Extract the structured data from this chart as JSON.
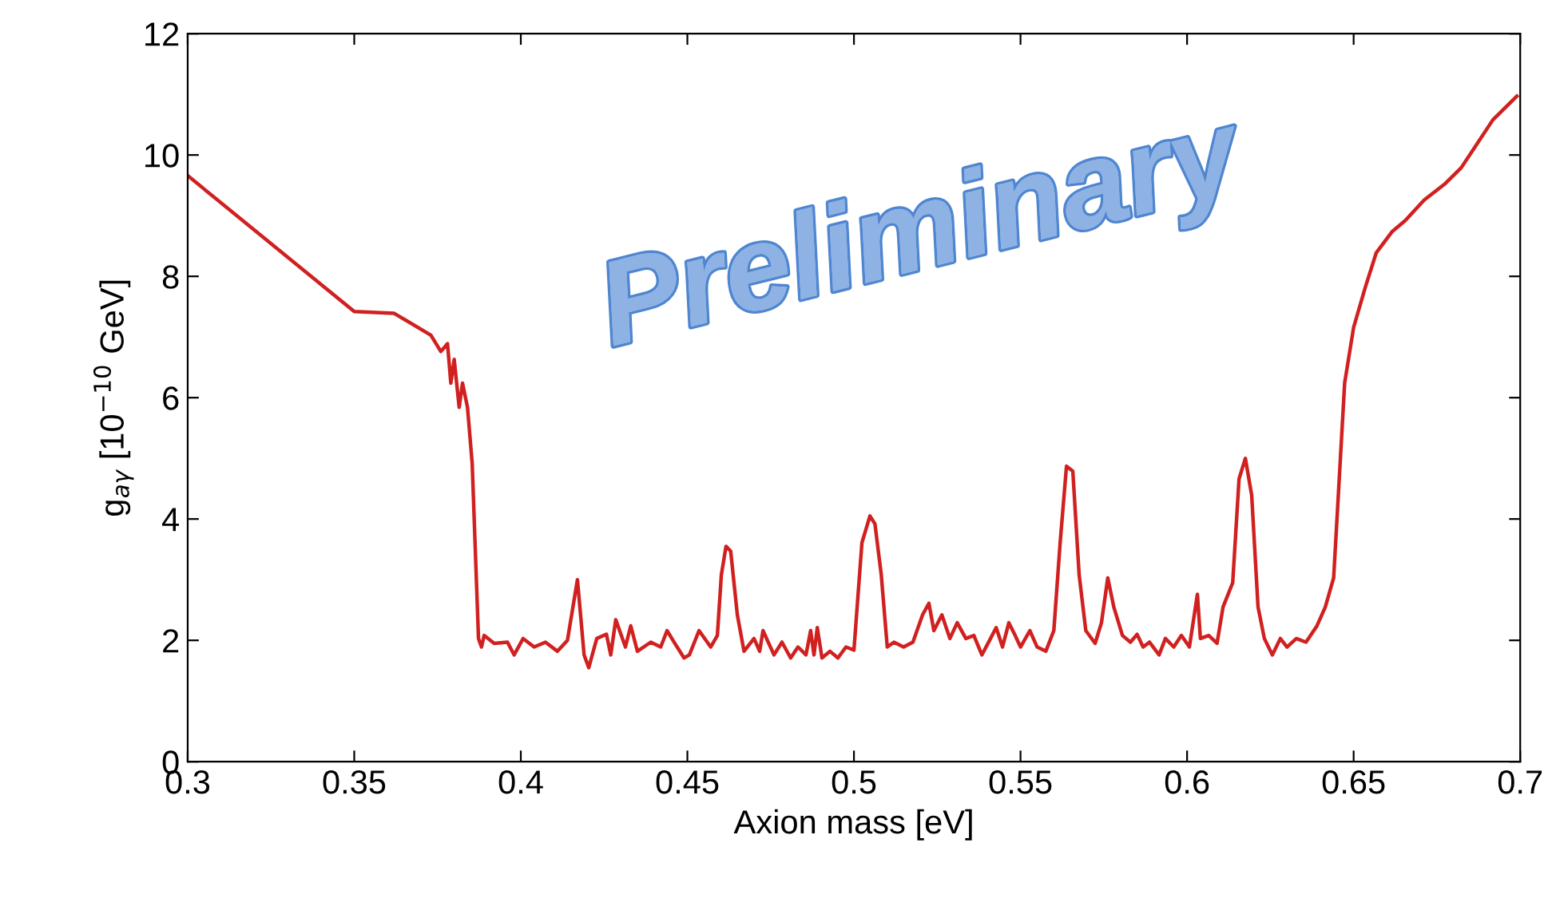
{
  "chart_data": {
    "type": "line",
    "xlabel": "Axion mass [eV]",
    "ylabel": "g$_{aγ}$ [10$^{−10}$ GeV]",
    "xlim": [
      0.3,
      0.7
    ],
    "xticks": [
      0.3,
      0.35,
      0.4,
      0.45,
      0.5,
      0.55,
      0.6,
      0.65,
      0.7
    ],
    "ylim": [
      0,
      12
    ],
    "yticks": [
      0,
      2,
      4,
      6,
      8,
      10,
      12
    ],
    "grid": false,
    "legend": false,
    "marker": "none",
    "line_style": "solid",
    "annotations": [
      "Preliminary"
    ],
    "series": [
      {
        "color": "#d0201f",
        "x": [
          0.3,
          0.35,
          0.362,
          0.373,
          0.376,
          0.378,
          0.379,
          0.38,
          0.3815,
          0.3825,
          0.384,
          0.3854,
          0.3873,
          0.3882,
          0.389,
          0.392,
          0.396,
          0.398,
          0.4007,
          0.404,
          0.4074,
          0.411,
          0.414,
          0.417,
          0.419,
          0.4204,
          0.4228,
          0.4257,
          0.427,
          0.4285,
          0.4314,
          0.433,
          0.435,
          0.439,
          0.442,
          0.4439,
          0.446,
          0.449,
          0.4506,
          0.4535,
          0.457,
          0.459,
          0.4602,
          0.4616,
          0.463,
          0.465,
          0.467,
          0.47,
          0.4717,
          0.4727,
          0.476,
          0.4784,
          0.481,
          0.4832,
          0.4856,
          0.487,
          0.488,
          0.489,
          0.4904,
          0.4928,
          0.4952,
          0.4976,
          0.5,
          0.5024,
          0.5048,
          0.5063,
          0.5082,
          0.51,
          0.512,
          0.5149,
          0.5177,
          0.5206,
          0.5225,
          0.524,
          0.5264,
          0.5288,
          0.531,
          0.5336,
          0.536,
          0.5384,
          0.541,
          0.5427,
          0.5446,
          0.5465,
          0.5484,
          0.55,
          0.5528,
          0.555,
          0.5576,
          0.56,
          0.5619,
          0.5638,
          0.5657,
          0.5676,
          0.5696,
          0.5724,
          0.5743,
          0.5762,
          0.578,
          0.5806,
          0.583,
          0.585,
          0.5868,
          0.5887,
          0.5916,
          0.5935,
          0.596,
          0.5983,
          0.6007,
          0.6031,
          0.604,
          0.6065,
          0.609,
          0.6108,
          0.6137,
          0.6156,
          0.6175,
          0.6194,
          0.6213,
          0.6232,
          0.6256,
          0.628,
          0.63,
          0.6328,
          0.6357,
          0.639,
          0.6415,
          0.644,
          0.6454,
          0.6473,
          0.65,
          0.6535,
          0.6568,
          0.6616,
          0.6655,
          0.6712,
          0.6775,
          0.6823,
          0.687,
          0.6918,
          0.699
        ],
        "values": [
          9.66,
          7.42,
          7.39,
          7.03,
          6.76,
          6.89,
          6.24,
          6.63,
          5.84,
          6.24,
          5.84,
          4.92,
          2.03,
          1.89,
          2.08,
          1.95,
          1.97,
          1.76,
          2.03,
          1.89,
          1.97,
          1.82,
          2.0,
          3.0,
          1.76,
          1.55,
          2.03,
          2.1,
          1.76,
          2.34,
          1.89,
          2.24,
          1.82,
          1.97,
          1.89,
          2.16,
          1.97,
          1.71,
          1.76,
          2.16,
          1.89,
          2.08,
          3.08,
          3.55,
          3.47,
          2.42,
          1.82,
          2.03,
          1.82,
          2.16,
          1.76,
          1.97,
          1.71,
          1.89,
          1.76,
          2.16,
          1.76,
          2.21,
          1.71,
          1.82,
          1.71,
          1.89,
          1.84,
          3.61,
          4.05,
          3.92,
          3.08,
          1.89,
          1.97,
          1.89,
          1.97,
          2.42,
          2.61,
          2.16,
          2.42,
          2.03,
          2.29,
          2.03,
          2.08,
          1.76,
          2.03,
          2.21,
          1.89,
          2.29,
          2.08,
          1.89,
          2.16,
          1.89,
          1.82,
          2.16,
          3.61,
          4.87,
          4.79,
          3.08,
          2.16,
          1.95,
          2.29,
          3.03,
          2.55,
          2.08,
          1.97,
          2.1,
          1.89,
          1.97,
          1.76,
          2.03,
          1.89,
          2.08,
          1.89,
          2.76,
          2.03,
          2.08,
          1.95,
          2.55,
          2.95,
          4.66,
          5.0,
          4.39,
          2.55,
          2.03,
          1.76,
          2.03,
          1.89,
          2.03,
          1.97,
          2.24,
          2.55,
          3.03,
          4.39,
          6.24,
          7.16,
          7.82,
          8.39,
          8.74,
          8.92,
          9.26,
          9.53,
          9.79,
          10.18,
          10.58,
          10.97
        ]
      }
    ]
  }
}
